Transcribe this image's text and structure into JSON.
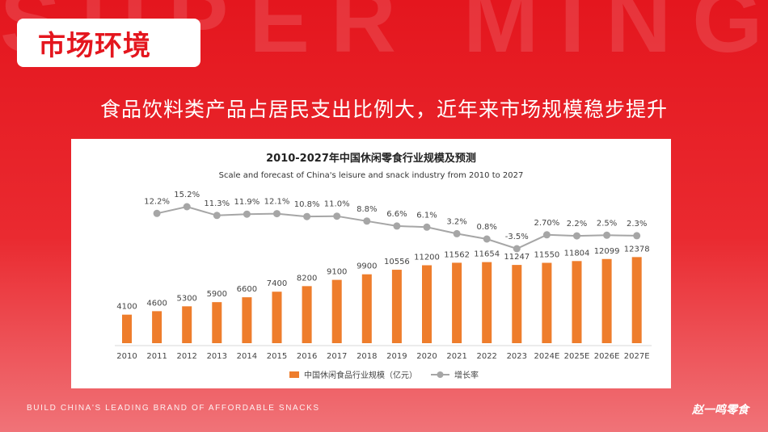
{
  "background_word": "SUPER MING",
  "header": {
    "badge": "市场环境",
    "subtitle": "食品饮料类产品占居民支出比例大，近年来市场规模稳步提升"
  },
  "footer": {
    "slogan": "BUILD CHINA'S LEADING BRAND OF AFFORDABLE SNACKS",
    "brand": "赵一鸣零食"
  },
  "colors": {
    "bar": "#ee7d2c",
    "line": "#a6a6a6",
    "accent": "#e4161e"
  },
  "chart_data": {
    "type": "bar",
    "title": "2010-2027年中国休闲零食行业规模及预测",
    "subtitle": "Scale and forecast of China's leisure and snack industry from 2010 to 2027",
    "categories": [
      "2010",
      "2011",
      "2012",
      "2013",
      "2014",
      "2015",
      "2016",
      "2017",
      "2018",
      "2019",
      "2020",
      "2021",
      "2022",
      "2023",
      "2024E",
      "2025E",
      "2026E",
      "2027E"
    ],
    "series": [
      {
        "name": "中国休闲食品行业规模（亿元）",
        "type": "bar",
        "values": [
          4100,
          4600,
          5300,
          5900,
          6600,
          7400,
          8200,
          9100,
          9900,
          10556,
          11200,
          11562,
          11654,
          11247,
          11550,
          11804,
          12099,
          12378
        ],
        "labels": [
          "4100",
          "4600",
          "5300",
          "5900",
          "6600",
          "7400",
          "8200",
          "9100",
          "9900",
          "10556",
          "11200",
          "11562",
          "11654",
          "11247",
          "11550",
          "11804",
          "12099",
          "12378"
        ]
      },
      {
        "name": "增长率",
        "type": "line",
        "values": [
          null,
          12.2,
          15.2,
          11.3,
          11.9,
          12.1,
          10.8,
          11.0,
          8.8,
          6.6,
          6.1,
          3.2,
          0.8,
          -3.5,
          2.7,
          2.2,
          2.5,
          2.3
        ],
        "labels": [
          "",
          "12.2%",
          "15.2%",
          "11.3%",
          "11.9%",
          "12.1%",
          "10.8%",
          "11.0%",
          "8.8%",
          "6.6%",
          "6.1%",
          "3.2%",
          "0.8%",
          "-3.5%",
          "2.70%",
          "2.2%",
          "2.5%",
          "2.3%"
        ]
      }
    ],
    "legend": "bottom-center",
    "grid": false
  }
}
